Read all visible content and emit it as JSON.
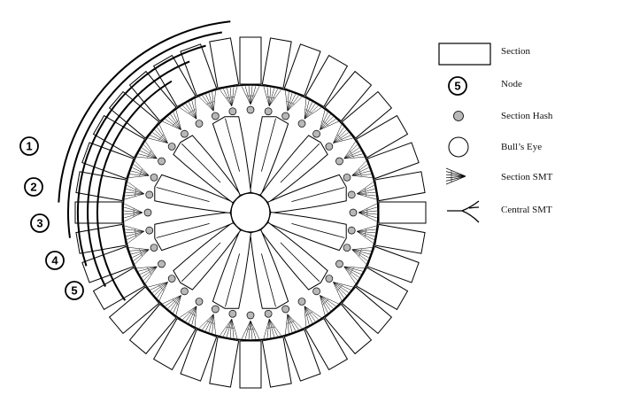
{
  "diagram": {
    "section_count": 36,
    "petal_count": 12,
    "levels": [
      {
        "label": "1"
      },
      {
        "label": "2"
      },
      {
        "label": "3"
      },
      {
        "label": "4"
      },
      {
        "label": "5"
      }
    ]
  },
  "legend": {
    "section": "Section",
    "node": "Node",
    "node_symbol": "5",
    "section_hash": "Section Hash",
    "bulls_eye": "Bull’s Eye",
    "section_smt": "Section SMT",
    "central_smt": "Central SMT"
  },
  "colors": {
    "stroke": "#000000",
    "hash_fill": "#b8b8b8",
    "background": "#ffffff"
  }
}
